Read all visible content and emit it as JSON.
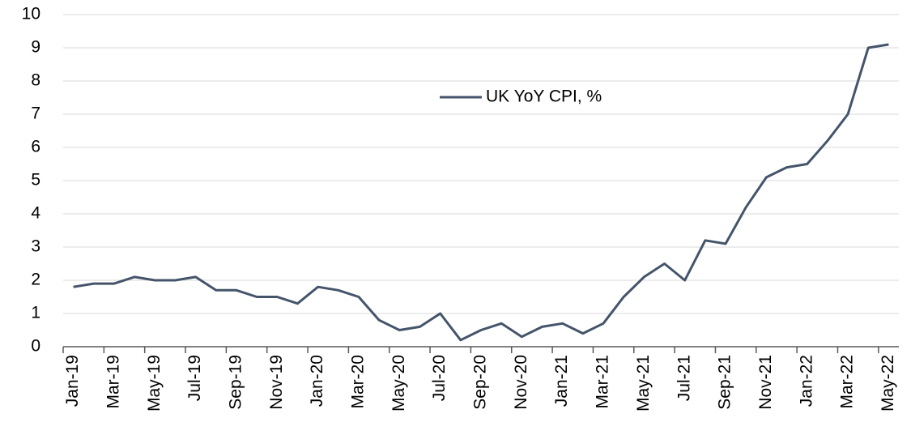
{
  "chart_data": {
    "type": "line",
    "categories": [
      "Jan-19",
      null,
      "Mar-19",
      null,
      "May-19",
      null,
      "Jul-19",
      null,
      "Sep-19",
      null,
      "Nov-19",
      null,
      "Jan-20",
      null,
      "Mar-20",
      null,
      "May-20",
      null,
      "Jul-20",
      null,
      "Sep-20",
      null,
      "Nov-20",
      null,
      "Jan-21",
      null,
      "Mar-21",
      null,
      "May-21",
      null,
      "Jul-21",
      null,
      "Sep-21",
      null,
      "Nov-21",
      null,
      "Jan-22",
      null,
      "Mar-22",
      null,
      "May-22"
    ],
    "series": [
      {
        "name": "UK YoY CPI, %",
        "color": "#44546a",
        "values": [
          1.8,
          1.9,
          1.9,
          2.1,
          2.0,
          2.0,
          2.1,
          1.7,
          1.7,
          1.5,
          1.5,
          1.3,
          1.8,
          1.7,
          1.5,
          0.8,
          0.5,
          0.6,
          1.0,
          0.2,
          0.5,
          0.7,
          0.3,
          0.6,
          0.7,
          0.4,
          0.7,
          1.5,
          2.1,
          2.5,
          2.0,
          3.2,
          3.1,
          4.2,
          5.1,
          5.4,
          5.5,
          6.2,
          7.0,
          9.0,
          9.1
        ]
      }
    ],
    "ylim": [
      0,
      10
    ],
    "yticks": [
      0,
      1,
      2,
      3,
      4,
      5,
      6,
      7,
      8,
      9,
      10
    ],
    "grid": true,
    "legend": "top-center"
  }
}
